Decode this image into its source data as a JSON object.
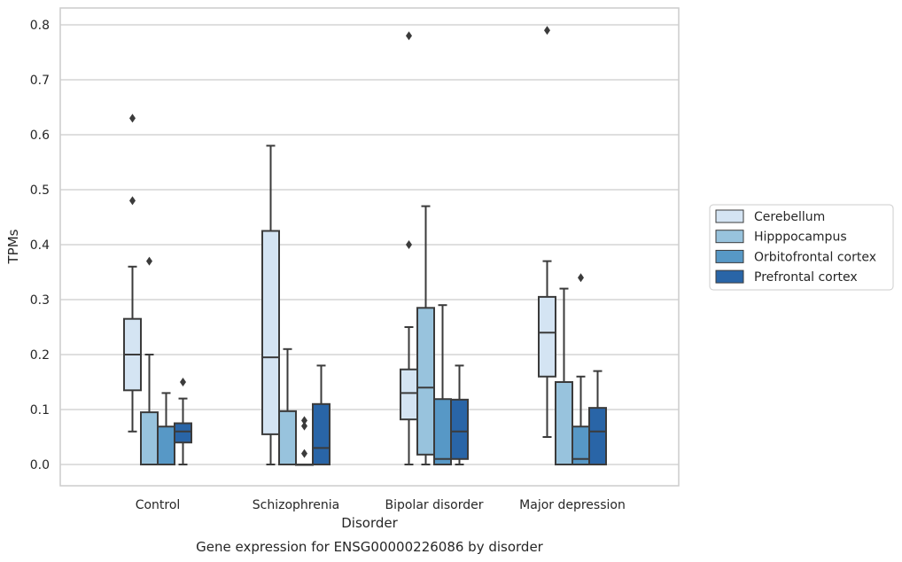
{
  "caption": "Gene expression for ENSG00000226086 by disorder",
  "chart_data": {
    "type": "box",
    "xlabel": "Disorder",
    "ylabel": "TPMs",
    "ylim": [
      -0.04,
      0.83
    ],
    "yticks": [
      0.0,
      0.1,
      0.2,
      0.3,
      0.4,
      0.5,
      0.6,
      0.7,
      0.8
    ],
    "ytick_labels": [
      "0.0",
      "0.1",
      "0.2",
      "0.3",
      "0.4",
      "0.5",
      "0.6",
      "0.7",
      "0.8"
    ],
    "grid": "horizontal",
    "legend_position": "right",
    "categories": [
      "Control",
      "Schizophrenia",
      "Bipolar disorder",
      "Major depression"
    ],
    "series": [
      {
        "name": "Cerebellum",
        "color": "#d4e4f3",
        "boxes": [
          {
            "whislo": 0.06,
            "q1": 0.135,
            "med": 0.2,
            "q3": 0.265,
            "whishi": 0.36,
            "fliers": [
              0.48,
              0.63
            ]
          },
          {
            "whislo": 0.0,
            "q1": 0.055,
            "med": 0.195,
            "q3": 0.425,
            "whishi": 0.58,
            "fliers": []
          },
          {
            "whislo": 0.0,
            "q1": 0.082,
            "med": 0.13,
            "q3": 0.173,
            "whishi": 0.25,
            "fliers": [
              0.4,
              0.78
            ]
          },
          {
            "whislo": 0.05,
            "q1": 0.16,
            "med": 0.24,
            "q3": 0.305,
            "whishi": 0.37,
            "fliers": [
              0.79
            ]
          }
        ]
      },
      {
        "name": "Hipppocampus",
        "color": "#98c3dd",
        "boxes": [
          {
            "whislo": 0.0,
            "q1": 0.0,
            "med": 0.0,
            "q3": 0.095,
            "whishi": 0.2,
            "fliers": [
              0.37
            ]
          },
          {
            "whislo": 0.0,
            "q1": 0.0,
            "med": 0.0,
            "q3": 0.097,
            "whishi": 0.21,
            "fliers": []
          },
          {
            "whislo": 0.0,
            "q1": 0.018,
            "med": 0.14,
            "q3": 0.285,
            "whishi": 0.47,
            "fliers": []
          },
          {
            "whislo": 0.0,
            "q1": 0.0,
            "med": 0.0,
            "q3": 0.15,
            "whishi": 0.32,
            "fliers": []
          }
        ]
      },
      {
        "name": "Orbitofrontal cortex",
        "color": "#5798c6",
        "boxes": [
          {
            "whislo": 0.0,
            "q1": 0.0,
            "med": 0.0,
            "q3": 0.069,
            "whishi": 0.13,
            "fliers": []
          },
          {
            "whislo": 0.0,
            "q1": 0.0,
            "med": 0.0,
            "q3": 0.0,
            "whishi": 0.0,
            "fliers": [
              0.02,
              0.07,
              0.08
            ]
          },
          {
            "whislo": 0.0,
            "q1": 0.0,
            "med": 0.01,
            "q3": 0.119,
            "whishi": 0.29,
            "fliers": []
          },
          {
            "whislo": 0.0,
            "q1": 0.0,
            "med": 0.01,
            "q3": 0.069,
            "whishi": 0.16,
            "fliers": [
              0.34
            ]
          }
        ]
      },
      {
        "name": "Prefrontal cortex",
        "color": "#2965a7",
        "boxes": [
          {
            "whislo": 0.0,
            "q1": 0.04,
            "med": 0.06,
            "q3": 0.075,
            "whishi": 0.12,
            "fliers": [
              0.15
            ]
          },
          {
            "whislo": 0.0,
            "q1": 0.0,
            "med": 0.03,
            "q3": 0.11,
            "whishi": 0.18,
            "fliers": []
          },
          {
            "whislo": 0.0,
            "q1": 0.01,
            "med": 0.06,
            "q3": 0.118,
            "whishi": 0.18,
            "fliers": []
          },
          {
            "whislo": 0.0,
            "q1": 0.0,
            "med": 0.06,
            "q3": 0.103,
            "whishi": 0.17,
            "fliers": []
          }
        ]
      }
    ]
  }
}
